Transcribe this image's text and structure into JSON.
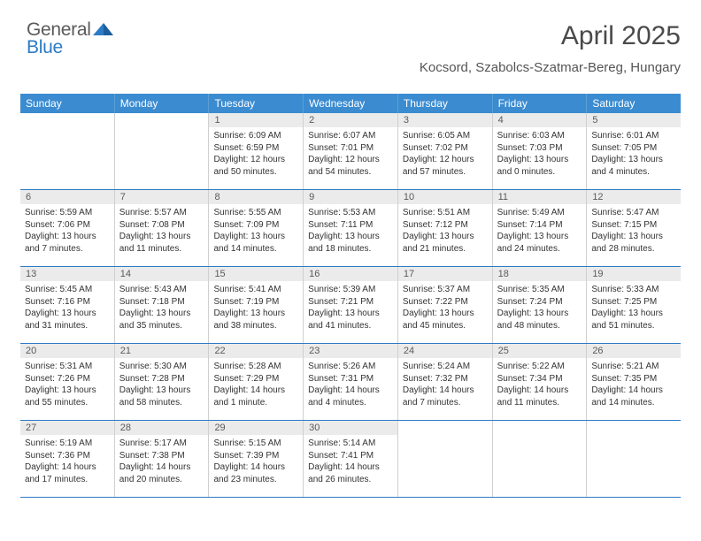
{
  "logo": {
    "word1": "General",
    "word2": "Blue"
  },
  "header": {
    "month_title": "April 2025",
    "location": "Kocsord, Szabolcs-Szatmar-Bereg, Hungary"
  },
  "colors": {
    "header_blue": "#3b8bd0",
    "logo_blue": "#2c7bc5",
    "row_divider": "#2c7bc5",
    "day_number_bg": "#ebebeb"
  },
  "weekdays": [
    "Sunday",
    "Monday",
    "Tuesday",
    "Wednesday",
    "Thursday",
    "Friday",
    "Saturday"
  ],
  "weeks": [
    [
      null,
      null,
      {
        "n": "1",
        "sunrise": "Sunrise: 6:09 AM",
        "sunset": "Sunset: 6:59 PM",
        "daylight": "Daylight: 12 hours and 50 minutes."
      },
      {
        "n": "2",
        "sunrise": "Sunrise: 6:07 AM",
        "sunset": "Sunset: 7:01 PM",
        "daylight": "Daylight: 12 hours and 54 minutes."
      },
      {
        "n": "3",
        "sunrise": "Sunrise: 6:05 AM",
        "sunset": "Sunset: 7:02 PM",
        "daylight": "Daylight: 12 hours and 57 minutes."
      },
      {
        "n": "4",
        "sunrise": "Sunrise: 6:03 AM",
        "sunset": "Sunset: 7:03 PM",
        "daylight": "Daylight: 13 hours and 0 minutes."
      },
      {
        "n": "5",
        "sunrise": "Sunrise: 6:01 AM",
        "sunset": "Sunset: 7:05 PM",
        "daylight": "Daylight: 13 hours and 4 minutes."
      }
    ],
    [
      {
        "n": "6",
        "sunrise": "Sunrise: 5:59 AM",
        "sunset": "Sunset: 7:06 PM",
        "daylight": "Daylight: 13 hours and 7 minutes."
      },
      {
        "n": "7",
        "sunrise": "Sunrise: 5:57 AM",
        "sunset": "Sunset: 7:08 PM",
        "daylight": "Daylight: 13 hours and 11 minutes."
      },
      {
        "n": "8",
        "sunrise": "Sunrise: 5:55 AM",
        "sunset": "Sunset: 7:09 PM",
        "daylight": "Daylight: 13 hours and 14 minutes."
      },
      {
        "n": "9",
        "sunrise": "Sunrise: 5:53 AM",
        "sunset": "Sunset: 7:11 PM",
        "daylight": "Daylight: 13 hours and 18 minutes."
      },
      {
        "n": "10",
        "sunrise": "Sunrise: 5:51 AM",
        "sunset": "Sunset: 7:12 PM",
        "daylight": "Daylight: 13 hours and 21 minutes."
      },
      {
        "n": "11",
        "sunrise": "Sunrise: 5:49 AM",
        "sunset": "Sunset: 7:14 PM",
        "daylight": "Daylight: 13 hours and 24 minutes."
      },
      {
        "n": "12",
        "sunrise": "Sunrise: 5:47 AM",
        "sunset": "Sunset: 7:15 PM",
        "daylight": "Daylight: 13 hours and 28 minutes."
      }
    ],
    [
      {
        "n": "13",
        "sunrise": "Sunrise: 5:45 AM",
        "sunset": "Sunset: 7:16 PM",
        "daylight": "Daylight: 13 hours and 31 minutes."
      },
      {
        "n": "14",
        "sunrise": "Sunrise: 5:43 AM",
        "sunset": "Sunset: 7:18 PM",
        "daylight": "Daylight: 13 hours and 35 minutes."
      },
      {
        "n": "15",
        "sunrise": "Sunrise: 5:41 AM",
        "sunset": "Sunset: 7:19 PM",
        "daylight": "Daylight: 13 hours and 38 minutes."
      },
      {
        "n": "16",
        "sunrise": "Sunrise: 5:39 AM",
        "sunset": "Sunset: 7:21 PM",
        "daylight": "Daylight: 13 hours and 41 minutes."
      },
      {
        "n": "17",
        "sunrise": "Sunrise: 5:37 AM",
        "sunset": "Sunset: 7:22 PM",
        "daylight": "Daylight: 13 hours and 45 minutes."
      },
      {
        "n": "18",
        "sunrise": "Sunrise: 5:35 AM",
        "sunset": "Sunset: 7:24 PM",
        "daylight": "Daylight: 13 hours and 48 minutes."
      },
      {
        "n": "19",
        "sunrise": "Sunrise: 5:33 AM",
        "sunset": "Sunset: 7:25 PM",
        "daylight": "Daylight: 13 hours and 51 minutes."
      }
    ],
    [
      {
        "n": "20",
        "sunrise": "Sunrise: 5:31 AM",
        "sunset": "Sunset: 7:26 PM",
        "daylight": "Daylight: 13 hours and 55 minutes."
      },
      {
        "n": "21",
        "sunrise": "Sunrise: 5:30 AM",
        "sunset": "Sunset: 7:28 PM",
        "daylight": "Daylight: 13 hours and 58 minutes."
      },
      {
        "n": "22",
        "sunrise": "Sunrise: 5:28 AM",
        "sunset": "Sunset: 7:29 PM",
        "daylight": "Daylight: 14 hours and 1 minute."
      },
      {
        "n": "23",
        "sunrise": "Sunrise: 5:26 AM",
        "sunset": "Sunset: 7:31 PM",
        "daylight": "Daylight: 14 hours and 4 minutes."
      },
      {
        "n": "24",
        "sunrise": "Sunrise: 5:24 AM",
        "sunset": "Sunset: 7:32 PM",
        "daylight": "Daylight: 14 hours and 7 minutes."
      },
      {
        "n": "25",
        "sunrise": "Sunrise: 5:22 AM",
        "sunset": "Sunset: 7:34 PM",
        "daylight": "Daylight: 14 hours and 11 minutes."
      },
      {
        "n": "26",
        "sunrise": "Sunrise: 5:21 AM",
        "sunset": "Sunset: 7:35 PM",
        "daylight": "Daylight: 14 hours and 14 minutes."
      }
    ],
    [
      {
        "n": "27",
        "sunrise": "Sunrise: 5:19 AM",
        "sunset": "Sunset: 7:36 PM",
        "daylight": "Daylight: 14 hours and 17 minutes."
      },
      {
        "n": "28",
        "sunrise": "Sunrise: 5:17 AM",
        "sunset": "Sunset: 7:38 PM",
        "daylight": "Daylight: 14 hours and 20 minutes."
      },
      {
        "n": "29",
        "sunrise": "Sunrise: 5:15 AM",
        "sunset": "Sunset: 7:39 PM",
        "daylight": "Daylight: 14 hours and 23 minutes."
      },
      {
        "n": "30",
        "sunrise": "Sunrise: 5:14 AM",
        "sunset": "Sunset: 7:41 PM",
        "daylight": "Daylight: 14 hours and 26 minutes."
      },
      null,
      null,
      null
    ]
  ]
}
